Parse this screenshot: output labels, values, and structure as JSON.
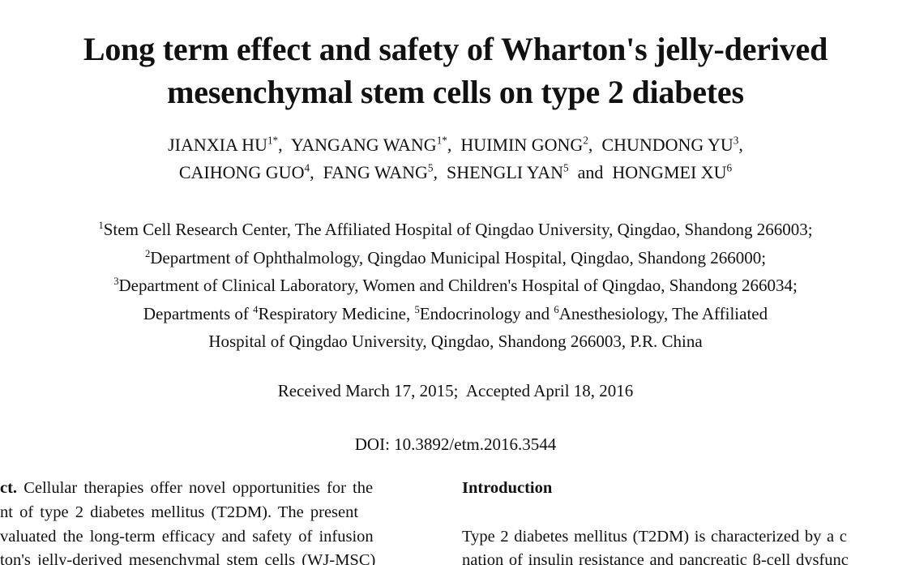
{
  "page": {
    "background_color": "#ffffff",
    "text_color": "#111111"
  },
  "title": {
    "line1": "Long term effect and safety of Wharton's jelly-derived",
    "line2": "mesenchymal stem cells on type 2 diabetes"
  },
  "authors": {
    "line1_parts": [
      {
        "t": "JIANXIA HU"
      },
      {
        "t": "1*",
        "sup": true
      },
      {
        "t": ",  "
      },
      {
        "t": "YANGANG WANG"
      },
      {
        "t": "1*",
        "sup": true
      },
      {
        "t": ",  "
      },
      {
        "t": "HUIMIN GONG"
      },
      {
        "t": "2",
        "sup": true
      },
      {
        "t": ",  "
      },
      {
        "t": "CHUNDONG YU"
      },
      {
        "t": "3",
        "sup": true
      },
      {
        "t": ","
      }
    ],
    "line2_parts": [
      {
        "t": "CAIHONG GUO"
      },
      {
        "t": "4",
        "sup": true
      },
      {
        "t": ",  "
      },
      {
        "t": "FANG WANG"
      },
      {
        "t": "5",
        "sup": true
      },
      {
        "t": ",  "
      },
      {
        "t": "SHENGLI YAN"
      },
      {
        "t": "5",
        "sup": true
      },
      {
        "t": "  and  "
      },
      {
        "t": "HONGMEI XU"
      },
      {
        "t": "6",
        "sup": true
      }
    ]
  },
  "affiliations": {
    "line1_parts": [
      {
        "t": "1",
        "sup": true
      },
      {
        "t": "Stem Cell Research Center, The Affiliated Hospital of Qingdao University, Qingdao, Shandong 266003;"
      }
    ],
    "line2_parts": [
      {
        "t": "2",
        "sup": true
      },
      {
        "t": "Department of Ophthalmology, Qingdao Municipal Hospital, Qingdao, Shandong 266000;"
      }
    ],
    "line3_parts": [
      {
        "t": "3",
        "sup": true
      },
      {
        "t": "Department of Clinical Laboratory, Women and Children's Hospital of Qingdao, Shandong 266034;"
      }
    ],
    "line4_parts": [
      {
        "t": "Departments of "
      },
      {
        "t": "4",
        "sup": true
      },
      {
        "t": "Respiratory Medicine, "
      },
      {
        "t": "5",
        "sup": true
      },
      {
        "t": "Endocrinology and "
      },
      {
        "t": "6",
        "sup": true
      },
      {
        "t": "Anesthesiology, The Affiliated"
      }
    ],
    "line5": "Hospital of Qingdao University, Qingdao, Shandong 266003, P.R. China"
  },
  "dates": {
    "received_accepted": "Received March 17, 2015;  Accepted April 18, 2016"
  },
  "doi": {
    "text": "DOI: 10.3892/etm.2016.3544"
  },
  "abstract_col": {
    "line1_parts": [
      {
        "t": "ct.",
        "bold": true
      },
      {
        "t": " Cellular therapies offer novel opportunities for the"
      }
    ],
    "line2": "nt of type 2 diabetes mellitus (T2DM). The present",
    "line3": "valuated the long-term efficacy and safety of infusion",
    "line4": "ton's jelly-derived mesenchymal stem cells (WJ-MSC)"
  },
  "intro_col": {
    "heading": "Introduction",
    "line1": "Type 2 diabetes mellitus (T2DM) is characterized by a c",
    "line2": "nation of insulin resistance and pancreatic β-cell dysfunc"
  }
}
